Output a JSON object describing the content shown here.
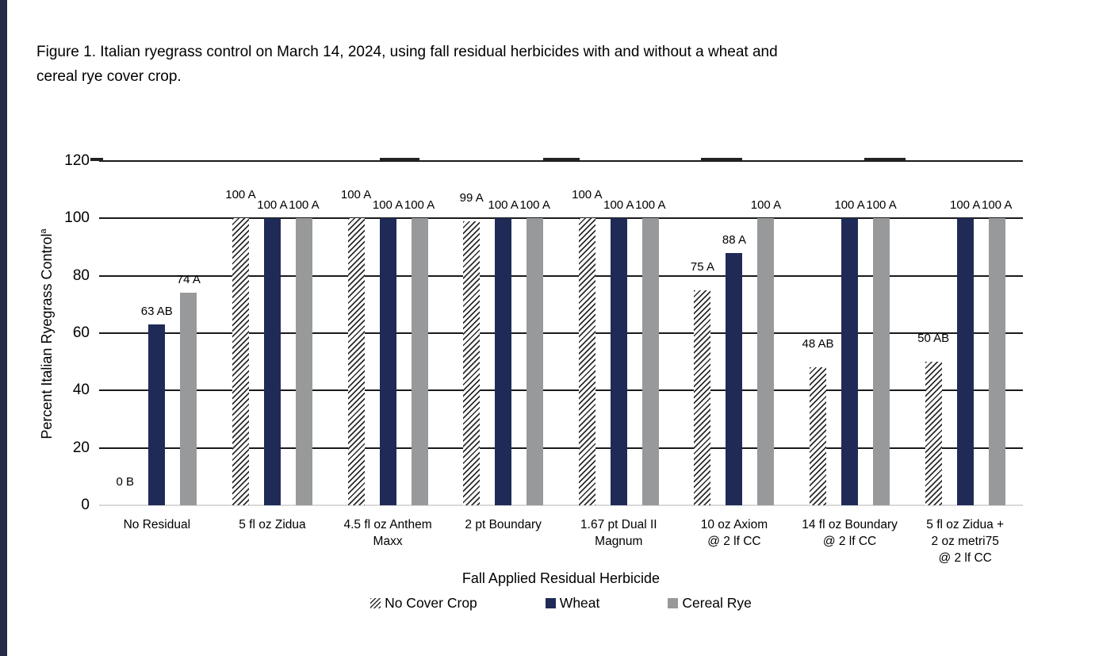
{
  "figure_caption": "Figure 1.  Italian ryegrass control on March 14, 2024, using fall residual herbicides with and without a wheat and\ncereal rye cover crop.",
  "chart_data": {
    "type": "bar",
    "title": "",
    "xlabel": "Fall Applied Residual Herbicide",
    "ylabel": "Percent Italian Ryegrass Control",
    "ylabel_superscript": "a",
    "ylim": [
      0,
      120
    ],
    "yticks": [
      0,
      20,
      40,
      60,
      80,
      100,
      120
    ],
    "grid": "horizontal",
    "legend_position": "bottom",
    "categories": [
      "No Residual",
      "5 fl oz Zidua",
      "4.5 fl oz Anthem\nMaxx",
      "2 pt Boundary",
      "1.67 pt Dual II\nMagnum",
      "10 oz Axiom\n@ 2  lf CC",
      "14 fl oz Boundary\n@ 2 lf CC",
      "5 fl oz Zidua +\n2 oz metri75\n@ 2 lf CC"
    ],
    "series": [
      {
        "name": "No Cover Crop",
        "fill": "hatch",
        "hatch_color": "#2b2b2b",
        "values": [
          0,
          100,
          100,
          99,
          100,
          75,
          48,
          50
        ],
        "labels": [
          "0 B",
          "100 A",
          "100 A",
          "99 A",
          "100 A",
          "75 A",
          "48 AB",
          "50 AB"
        ]
      },
      {
        "name": "Wheat",
        "fill": "solid",
        "color": "#1F2B56",
        "values": [
          63,
          100,
          100,
          100,
          100,
          88,
          100,
          100
        ],
        "labels": [
          "63 AB",
          "100 A",
          "100 A",
          "100 A",
          "100 A",
          "88 A",
          "100 A",
          "100 A"
        ]
      },
      {
        "name": "Cereal Rye",
        "fill": "solid",
        "color": "#97999B",
        "values": [
          74,
          100,
          100,
          100,
          100,
          100,
          100,
          100
        ],
        "labels": [
          "74 A",
          "100 A",
          "100 A",
          "100 A",
          "100 A",
          "100 A",
          "100 A",
          "100 A"
        ]
      }
    ],
    "gridline_color": "#1a1a1a",
    "baseline_color": "#d9d9d9"
  }
}
